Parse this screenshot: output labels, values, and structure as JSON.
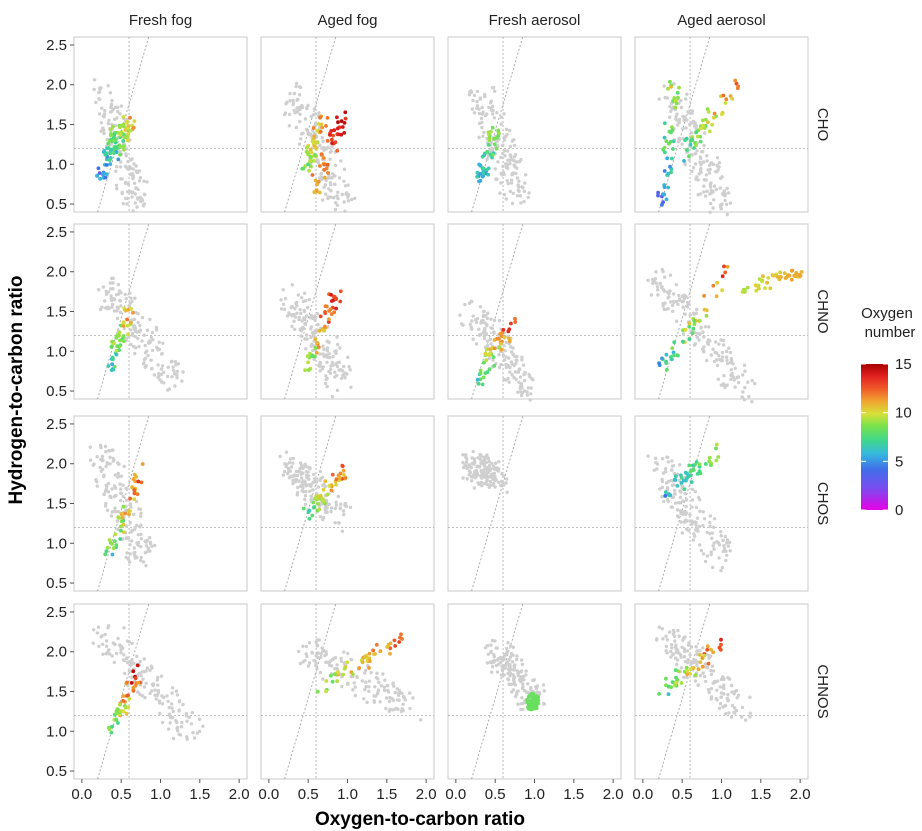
{
  "chart_data": {
    "type": "scatter",
    "xlabel": "Oxygen-to-carbon ratio",
    "ylabel": "Hydrogen-to-carbon ratio",
    "xlim": [
      -0.1,
      2.1
    ],
    "ylim": [
      0.4,
      2.6
    ],
    "x_ticks": [
      0.0,
      0.5,
      1.0,
      1.5,
      2.0
    ],
    "x_tick_labels": [
      "0.0",
      "0.5",
      "1.0",
      "1.5",
      "2.0"
    ],
    "y_ticks": [
      0.5,
      1.0,
      1.5,
      2.0,
      2.5
    ],
    "y_tick_labels": [
      "0.5",
      "1.0",
      "1.5",
      "2.0",
      "2.5"
    ],
    "columns": [
      "Fresh fog",
      "Aged fog",
      "Fresh aerosol",
      "Aged aerosol"
    ],
    "rows": [
      "CHO",
      "CHNO",
      "CHOS",
      "CHNOS"
    ],
    "reference_lines": {
      "vertical_x": 0.6,
      "horizontal_y": 1.2,
      "diagonal": {
        "from": [
          0.2,
          0.4
        ],
        "to": [
          0.85,
          2.6
        ]
      }
    },
    "grid": false,
    "colorbar": {
      "title_lines": [
        "Oxygen",
        "number"
      ],
      "min": 0,
      "max": 15,
      "ticks": [
        0,
        5,
        10,
        15
      ],
      "tick_labels": [
        "0",
        "5",
        "10",
        "15"
      ],
      "colors": [
        "#e600e6",
        "#7a4cf0",
        "#3f6fe8",
        "#37b6e0",
        "#3fd88a",
        "#7ee24a",
        "#d8df3a",
        "#f0a030",
        "#f05a28",
        "#e02020",
        "#a80000"
      ]
    },
    "point_colors": {
      "background": "#cfcfcf"
    },
    "panels": [
      {
        "row": "CHO",
        "col": "Fresh fog",
        "grey": [
          [
            0.3,
            1.9,
            0.7,
            0.5
          ]
        ],
        "colored": [
          [
            0.38,
            1.05,
            0.62,
            1.55,
            3,
            12
          ],
          [
            0.25,
            0.85,
            0.45,
            1.45,
            2,
            9
          ]
        ]
      },
      {
        "row": "CHO",
        "col": "Aged fog",
        "grey": [
          [
            0.3,
            1.9,
            0.95,
            0.5
          ]
        ],
        "colored": [
          [
            0.55,
            0.6,
            0.95,
            1.6,
            9,
            15
          ],
          [
            0.45,
            0.9,
            0.7,
            1.55,
            6,
            12
          ]
        ]
      },
      {
        "row": "CHO",
        "col": "Fresh aerosol",
        "grey": [
          [
            0.3,
            1.9,
            0.8,
            0.6
          ]
        ],
        "colored": [
          [
            0.3,
            0.8,
            0.5,
            1.45,
            3,
            9
          ]
        ]
      },
      {
        "row": "CHO",
        "col": "Aged aerosol",
        "grey": [
          [
            0.3,
            1.9,
            1.0,
            0.5
          ]
        ],
        "colored": [
          [
            0.25,
            0.5,
            0.4,
            2.0,
            2,
            10
          ],
          [
            0.45,
            1.1,
            1.2,
            2.0,
            4,
            13
          ]
        ]
      },
      {
        "row": "CHNO",
        "col": "Fresh fog",
        "grey": [
          [
            0.3,
            1.8,
            1.2,
            0.6
          ]
        ],
        "colored": [
          [
            0.3,
            0.7,
            0.6,
            1.5,
            3,
            12
          ]
        ]
      },
      {
        "row": "CHNO",
        "col": "Aged fog",
        "grey": [
          [
            0.3,
            1.7,
            0.95,
            0.6
          ]
        ],
        "colored": [
          [
            0.5,
            0.8,
            0.85,
            1.7,
            6,
            15
          ]
        ]
      },
      {
        "row": "CHNO",
        "col": "Fresh aerosol",
        "grey": [
          [
            0.2,
            1.5,
            0.95,
            0.5
          ]
        ],
        "colored": [
          [
            0.25,
            0.6,
            0.7,
            1.35,
            4,
            14
          ]
        ]
      },
      {
        "row": "CHNO",
        "col": "Aged aerosol",
        "grey": [
          [
            0.2,
            1.9,
            1.3,
            0.5
          ]
        ],
        "colored": [
          [
            0.25,
            0.8,
            1.1,
            2.0,
            3,
            14
          ],
          [
            1.3,
            1.8,
            2.0,
            2.0,
            8,
            11
          ]
        ]
      },
      {
        "row": "CHOS",
        "col": "Fresh fog",
        "grey": [
          [
            0.2,
            2.2,
            0.8,
            0.8
          ]
        ],
        "colored": [
          [
            0.3,
            0.8,
            0.8,
            1.95,
            4,
            14
          ]
        ]
      },
      {
        "row": "CHOS",
        "col": "Aged fog",
        "grey": [
          [
            0.3,
            2.0,
            0.9,
            1.3
          ]
        ],
        "colored": [
          [
            0.45,
            1.3,
            1.0,
            1.95,
            5,
            13
          ]
        ]
      },
      {
        "row": "CHOS",
        "col": "Fresh aerosol",
        "grey": [
          [
            0.2,
            2.0,
            0.5,
            1.8
          ]
        ],
        "colored": []
      },
      {
        "row": "CHOS",
        "col": "Aged aerosol",
        "grey": [
          [
            0.2,
            2.0,
            1.0,
            0.8
          ]
        ],
        "colored": [
          [
            0.25,
            1.6,
            1.0,
            2.2,
            3,
            9
          ]
        ]
      },
      {
        "row": "CHNOS",
        "col": "Fresh fog",
        "grey": [
          [
            0.3,
            2.2,
            1.4,
            1.0
          ]
        ],
        "colored": [
          [
            0.35,
            0.9,
            0.7,
            1.75,
            4,
            15
          ]
        ]
      },
      {
        "row": "CHNOS",
        "col": "Aged fog",
        "grey": [
          [
            0.5,
            2.0,
            1.8,
            1.3
          ]
        ],
        "colored": [
          [
            0.6,
            1.5,
            1.7,
            2.2,
            6,
            13
          ]
        ]
      },
      {
        "row": "CHNOS",
        "col": "Fresh aerosol",
        "grey": [
          [
            0.5,
            2.0,
            1.0,
            1.4
          ]
        ],
        "colored": [
          [
            0.95,
            1.35,
            1.0,
            1.4,
            7,
            7
          ]
        ]
      },
      {
        "row": "CHNOS",
        "col": "Aged aerosol",
        "grey": [
          [
            0.3,
            2.2,
            1.3,
            1.2
          ]
        ],
        "colored": [
          [
            0.25,
            1.5,
            1.0,
            2.1,
            4,
            14
          ]
        ]
      }
    ]
  }
}
